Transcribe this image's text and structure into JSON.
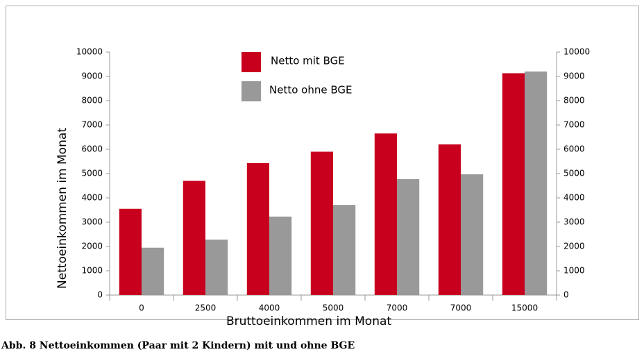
{
  "chart_data": {
    "type": "bar",
    "caption": "Abb. 8 Nettoeinkommen (Paar mit 2 Kindern) mit und ohne BGE",
    "x_label": "Bruttoeinkommen im Monat",
    "y_label": "Nettoeinkommen im Monat",
    "categories": [
      "0",
      "2500",
      "4000",
      "5000",
      "7000",
      "7000",
      "15000"
    ],
    "series": [
      {
        "name": "Netto mit BGE",
        "color": "#c8001e",
        "values": [
          3550,
          4700,
          5430,
          5900,
          6650,
          6200,
          9130
        ]
      },
      {
        "name": "Netto ohne BGE",
        "color": "#999999",
        "values": [
          1950,
          2280,
          3230,
          3710,
          4770,
          4970,
          9200
        ]
      }
    ],
    "ylim": [
      0,
      10000
    ],
    "yticks": [
      0,
      1000,
      2000,
      3000,
      4000,
      5000,
      6000,
      7000,
      8000,
      9000,
      10000
    ],
    "y2lim": [
      0,
      10000
    ],
    "y2ticks": [
      0,
      1000,
      2000,
      3000,
      4000,
      5000,
      6000,
      7000,
      8000,
      9000,
      10000
    ]
  }
}
